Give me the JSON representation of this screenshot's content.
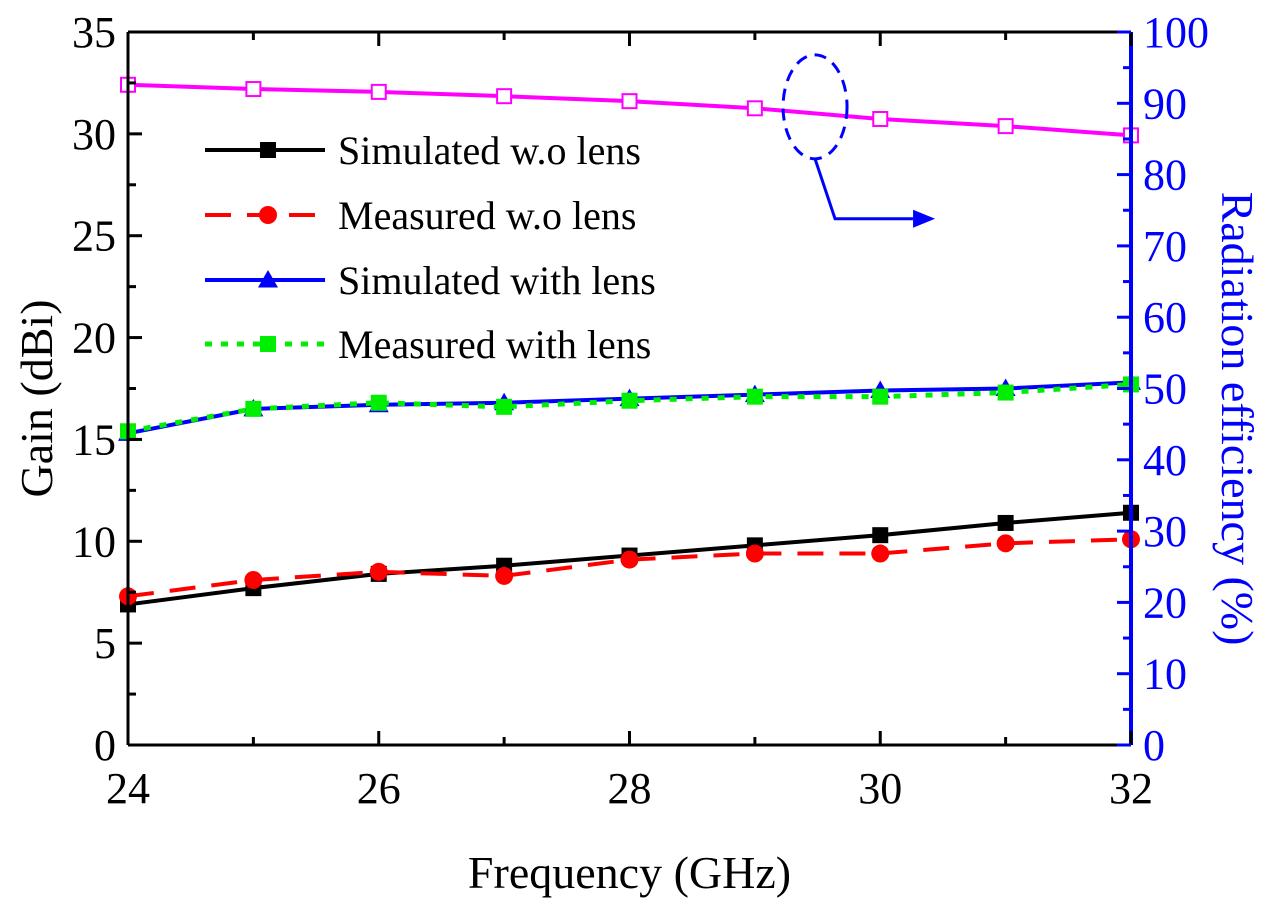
{
  "chart_data": {
    "type": "line",
    "xlabel": "Frequency (GHz)",
    "ylabel": "Gain (dBi)",
    "y2label": "Radiation efficiency (%)",
    "xlim": [
      24,
      32
    ],
    "ylim": [
      0,
      35
    ],
    "y2lim": [
      0,
      100
    ],
    "x_ticks": [
      "24",
      "26",
      "28",
      "30",
      "32"
    ],
    "y_ticks": [
      "0",
      "5",
      "10",
      "15",
      "20",
      "25",
      "30",
      "35"
    ],
    "y2_ticks": [
      "0",
      "10",
      "20",
      "30",
      "40",
      "50",
      "60",
      "70",
      "80",
      "90",
      "100"
    ],
    "legend_position": "upper-left",
    "series": [
      {
        "name": "Simulated w.o lens",
        "axis": "left",
        "color": "#000000",
        "line": "solid",
        "marker": "square-filled",
        "x": [
          24,
          25,
          26,
          27,
          28,
          29,
          30,
          31,
          32
        ],
        "values": [
          6.9,
          7.7,
          8.4,
          8.8,
          9.3,
          9.8,
          10.3,
          10.9,
          11.4
        ]
      },
      {
        "name": "Measured w.o lens",
        "axis": "left",
        "color": "#ff0000",
        "line": "dashed",
        "marker": "circle-filled",
        "x": [
          24,
          25,
          26,
          27,
          28,
          29,
          30,
          31,
          32
        ],
        "values": [
          7.3,
          8.1,
          8.5,
          8.3,
          9.1,
          9.4,
          9.4,
          9.9,
          10.1
        ]
      },
      {
        "name": "Simulated with lens",
        "axis": "left",
        "color": "#0000ff",
        "line": "solid",
        "marker": "triangle-filled",
        "x": [
          24,
          25,
          26,
          27,
          28,
          29,
          30,
          31,
          32
        ],
        "values": [
          15.3,
          16.5,
          16.7,
          16.8,
          17.0,
          17.2,
          17.4,
          17.5,
          17.8
        ]
      },
      {
        "name": "Measured with lens",
        "axis": "left",
        "color": "#00ee00",
        "line": "dotted",
        "marker": "square-filled",
        "x": [
          24,
          25,
          26,
          27,
          28,
          29,
          30,
          31,
          32
        ],
        "values": [
          15.4,
          16.5,
          16.8,
          16.6,
          16.9,
          17.1,
          17.1,
          17.3,
          17.7
        ]
      },
      {
        "name": "Radiation efficiency",
        "axis": "right",
        "color": "#ff00ff",
        "line": "solid",
        "marker": "square-open",
        "x": [
          24,
          25,
          26,
          27,
          28,
          29,
          30,
          31,
          32
        ],
        "values": [
          92.6,
          92.0,
          91.6,
          91.0,
          90.3,
          89.3,
          87.8,
          86.8,
          85.5
        ]
      }
    ],
    "annotation": {
      "type": "ellipse-with-arrow",
      "target_series": "Radiation efficiency",
      "points_to_axis": "right",
      "color": "#0000ff"
    }
  }
}
